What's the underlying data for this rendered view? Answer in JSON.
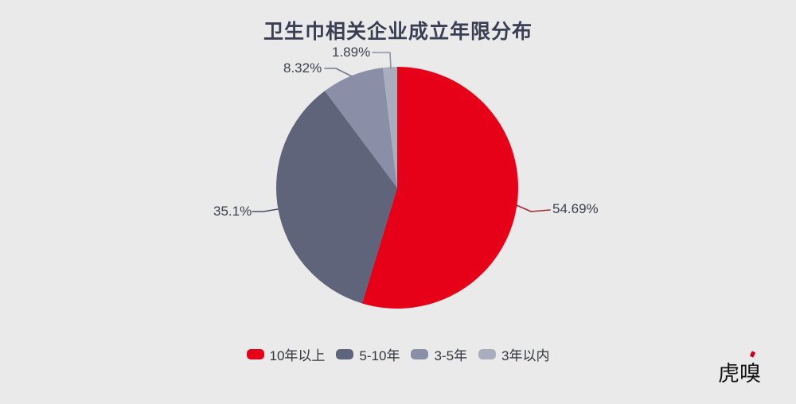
{
  "page": {
    "background_color": "#eaeaeb"
  },
  "chart_data": {
    "type": "pie",
    "title": "卫生巾相关企业成立年限分布",
    "start_angle_deg": 0,
    "direction": "clockwise",
    "legend_position": "bottom",
    "labels_shown_as": "percent-with-leader-lines",
    "series": [
      {
        "label": "10年以上",
        "value": 54.69,
        "display": "54.69%",
        "color": "#e60018",
        "leader_color": "#a42b35"
      },
      {
        "label": "5-10年",
        "value": 35.1,
        "display": "35.1%",
        "color": "#5f647a",
        "leader_color": "#4a4e61"
      },
      {
        "label": "3-5年",
        "value": 8.32,
        "display": "8.32%",
        "color": "#8a8fa7",
        "leader_color": "#757a8e"
      },
      {
        "label": "3年以内",
        "value": 1.89,
        "display": "1.89%",
        "color": "#a9adbd",
        "leader_color": "#8d91a1"
      }
    ]
  },
  "branding": {
    "logo_text": "虎嗅",
    "logo_accent_color": "#d0021b"
  }
}
